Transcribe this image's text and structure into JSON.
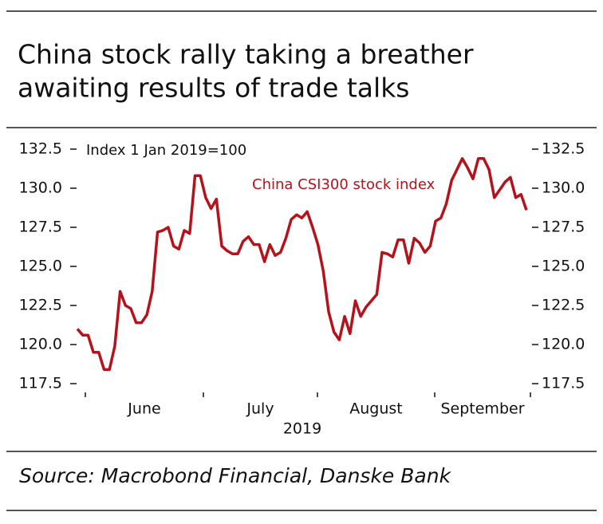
{
  "chart_data": {
    "type": "line",
    "title": [
      "China stock rally taking a breather",
      "awaiting results of trade talks"
    ],
    "annotation": "Index 1 Jan 2019=100",
    "x_labels": [
      "June",
      "July",
      "August",
      "September"
    ],
    "x_axis_label": "2019",
    "source": "Source: Macrobond Financial, Danske Bank",
    "series": [
      {
        "name": "China CSI300 stock index",
        "color": "#b5121b",
        "values": [
          121.0,
          120.6,
          120.6,
          119.5,
          119.5,
          118.4,
          118.4,
          119.9,
          123.4,
          122.5,
          122.3,
          121.4,
          121.4,
          121.9,
          123.4,
          127.2,
          127.3,
          127.5,
          126.3,
          126.1,
          127.3,
          127.1,
          130.8,
          130.8,
          129.4,
          128.7,
          129.3,
          126.3,
          126.0,
          125.8,
          125.8,
          126.6,
          126.9,
          126.4,
          126.4,
          125.3,
          126.4,
          125.7,
          125.9,
          126.8,
          128.0,
          128.3,
          128.1,
          128.5,
          127.5,
          126.4,
          124.7,
          122.1,
          120.8,
          120.3,
          121.8,
          120.7,
          122.8,
          121.8,
          122.4,
          122.8,
          123.2,
          125.9,
          125.8,
          125.6,
          126.7,
          126.7,
          125.2,
          126.8,
          126.5,
          125.9,
          126.3,
          127.9,
          128.1,
          129.0,
          130.5,
          131.2,
          131.9,
          131.3,
          130.6,
          131.9,
          131.9,
          131.2,
          129.4,
          129.9,
          130.4,
          130.7,
          129.4,
          129.6,
          128.6
        ]
      }
    ],
    "ylim": [
      117.5,
      132.5
    ],
    "yticks": [
      117.5,
      {
        "value": 120,
        "label": "120.0"
      },
      122.5,
      {
        "value": 125,
        "label": "125.0"
      },
      127.5,
      {
        "value": 130,
        "label": "130.0"
      },
      132.5
    ],
    "grid": false
  }
}
